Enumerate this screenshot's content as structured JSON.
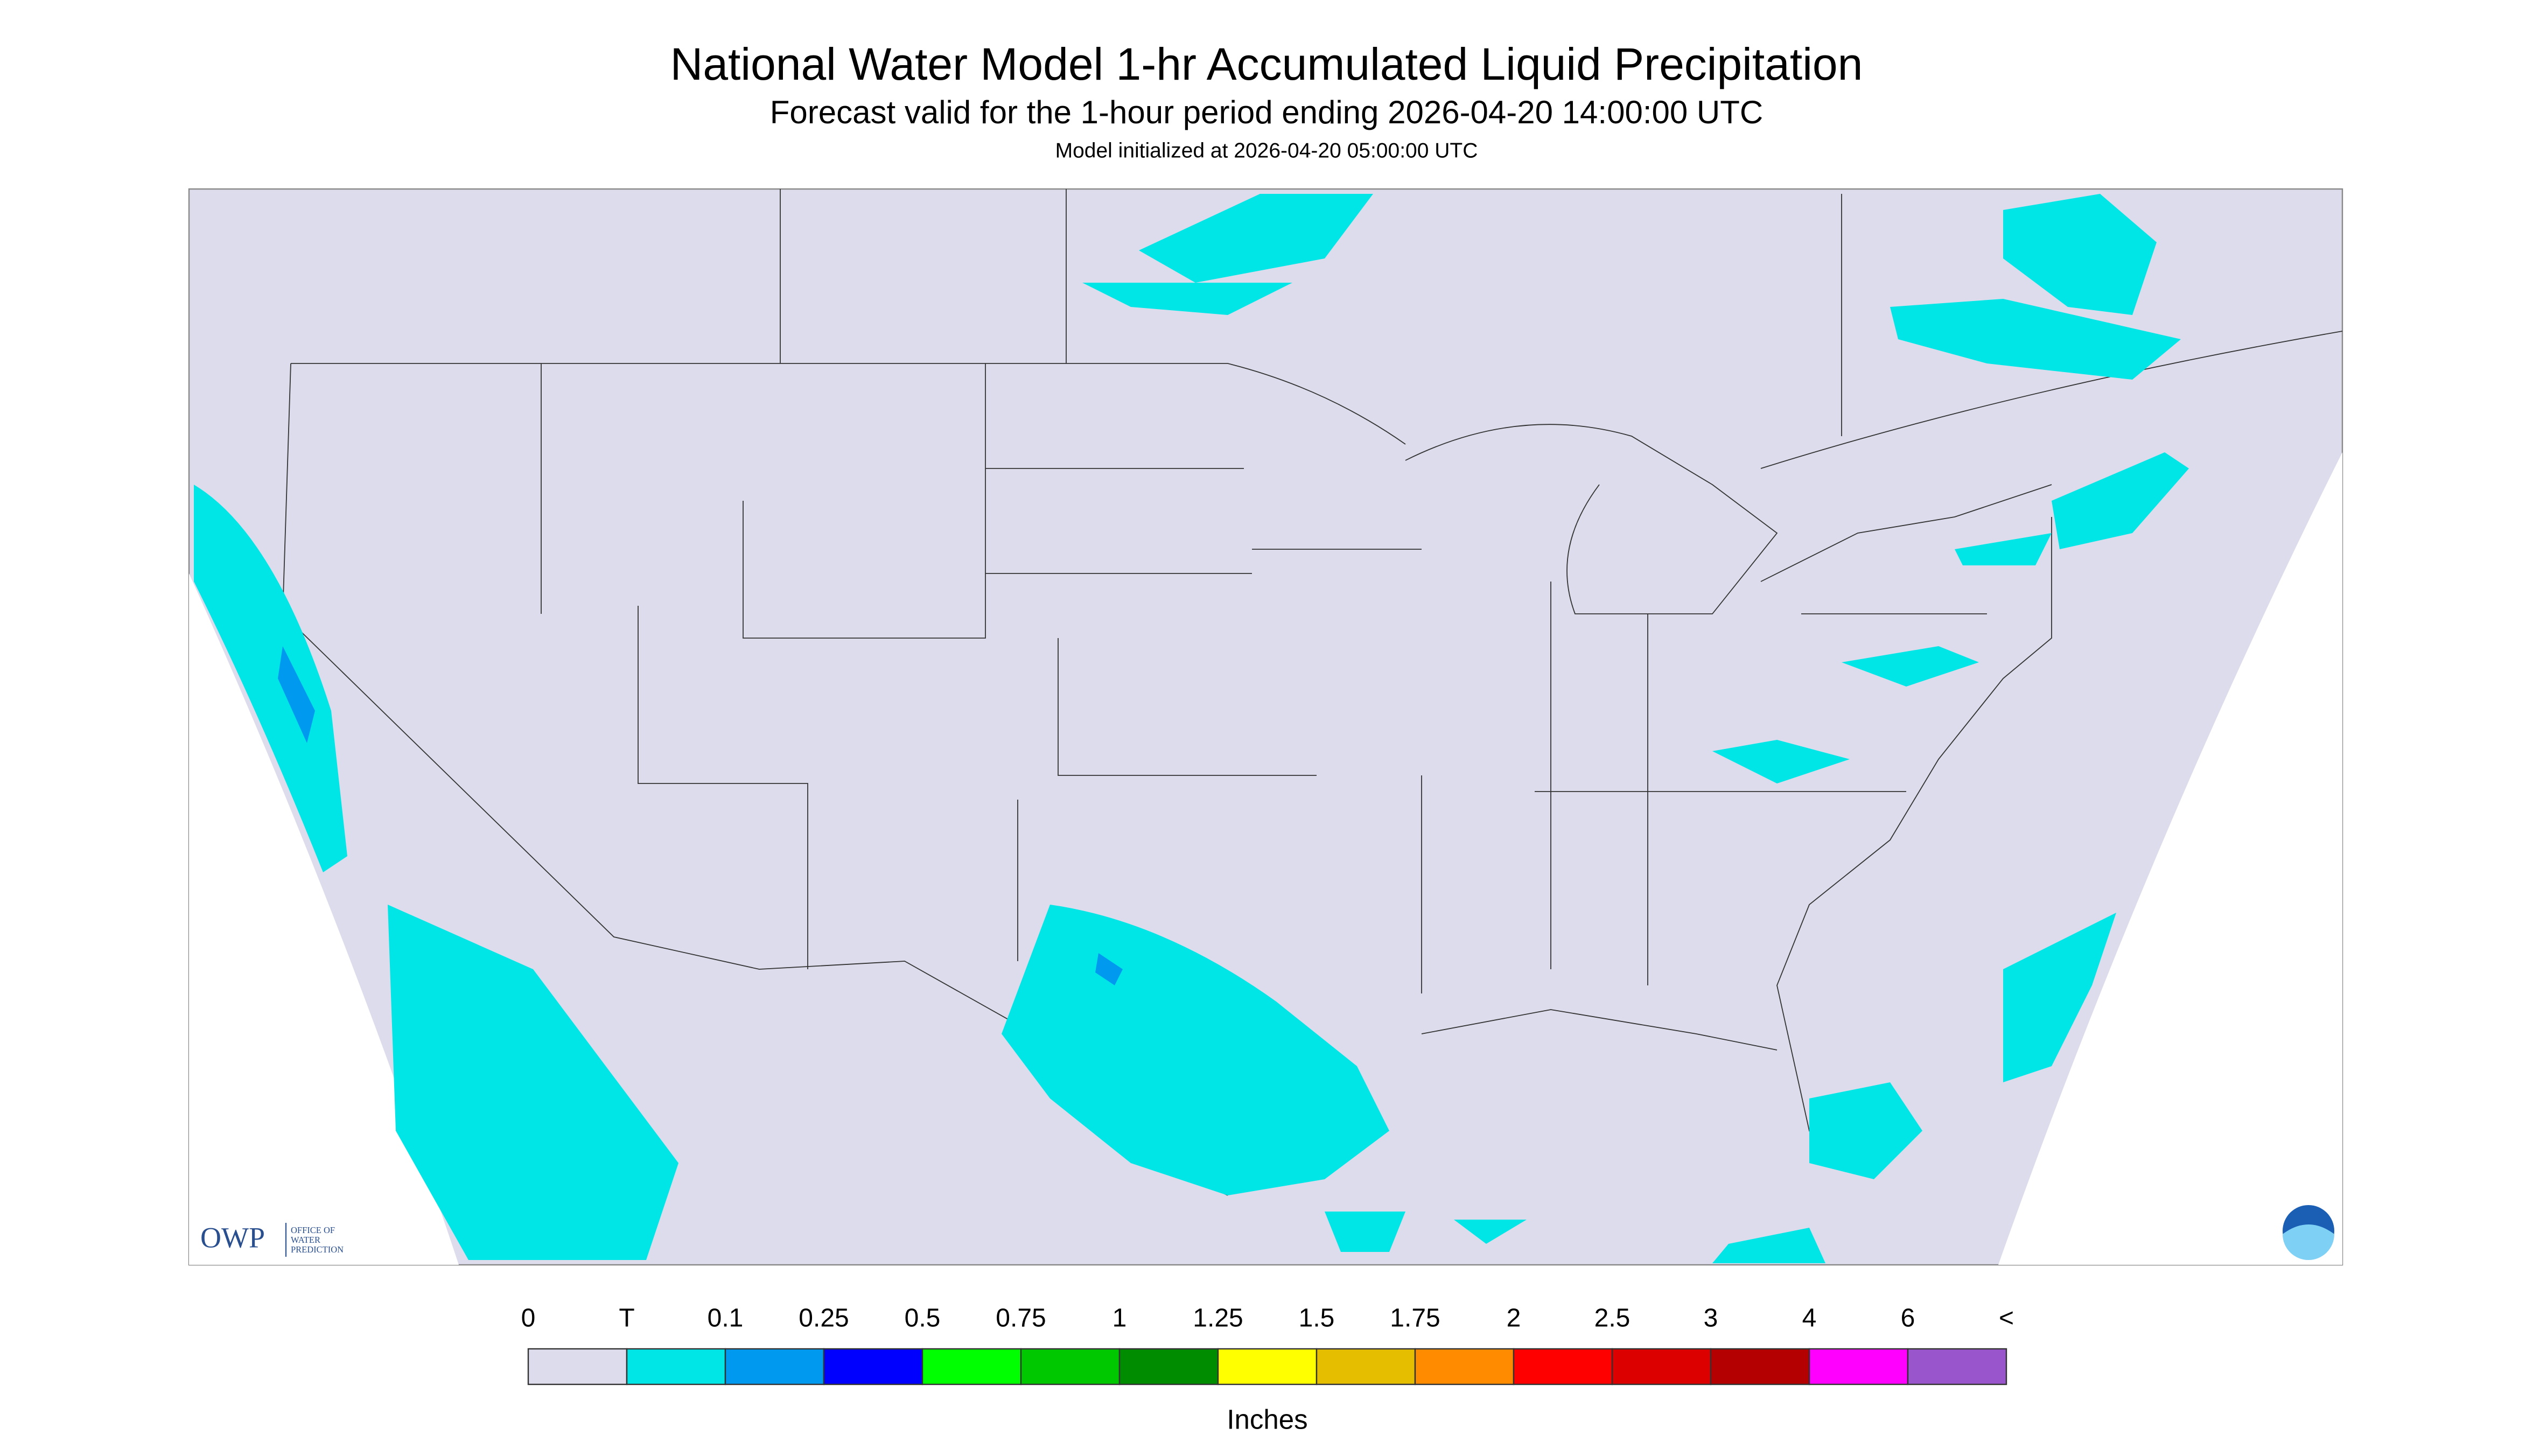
{
  "header": {
    "title": "National Water Model 1-hr Accumulated Liquid Precipitation",
    "subtitle": "Forecast valid for the 1-hour period ending 2026-04-20 14:00:00 UTC",
    "note": "Model initialized at 2026-04-20 05:00:00 UTC"
  },
  "logo": {
    "abbr": "OWP",
    "name_lines": [
      "OFFICE OF",
      "WATER",
      "PREDICTION"
    ]
  },
  "legend": {
    "labels": [
      "0",
      "T",
      "0.1",
      "0.25",
      "0.5",
      "0.75",
      "1",
      "1.25",
      "1.5",
      "1.75",
      "2",
      "2.5",
      "3",
      "4",
      "6",
      "<"
    ],
    "colors": [
      "#dcdcec",
      "#00e6e6",
      "#0099f0",
      "#0000ff",
      "#00ff00",
      "#00c800",
      "#008c00",
      "#ffff00",
      "#e6be00",
      "#ff8c00",
      "#ff0000",
      "#dc0000",
      "#b40000",
      "#ff00ff",
      "#9955cc"
    ],
    "unit": "Inches"
  }
}
